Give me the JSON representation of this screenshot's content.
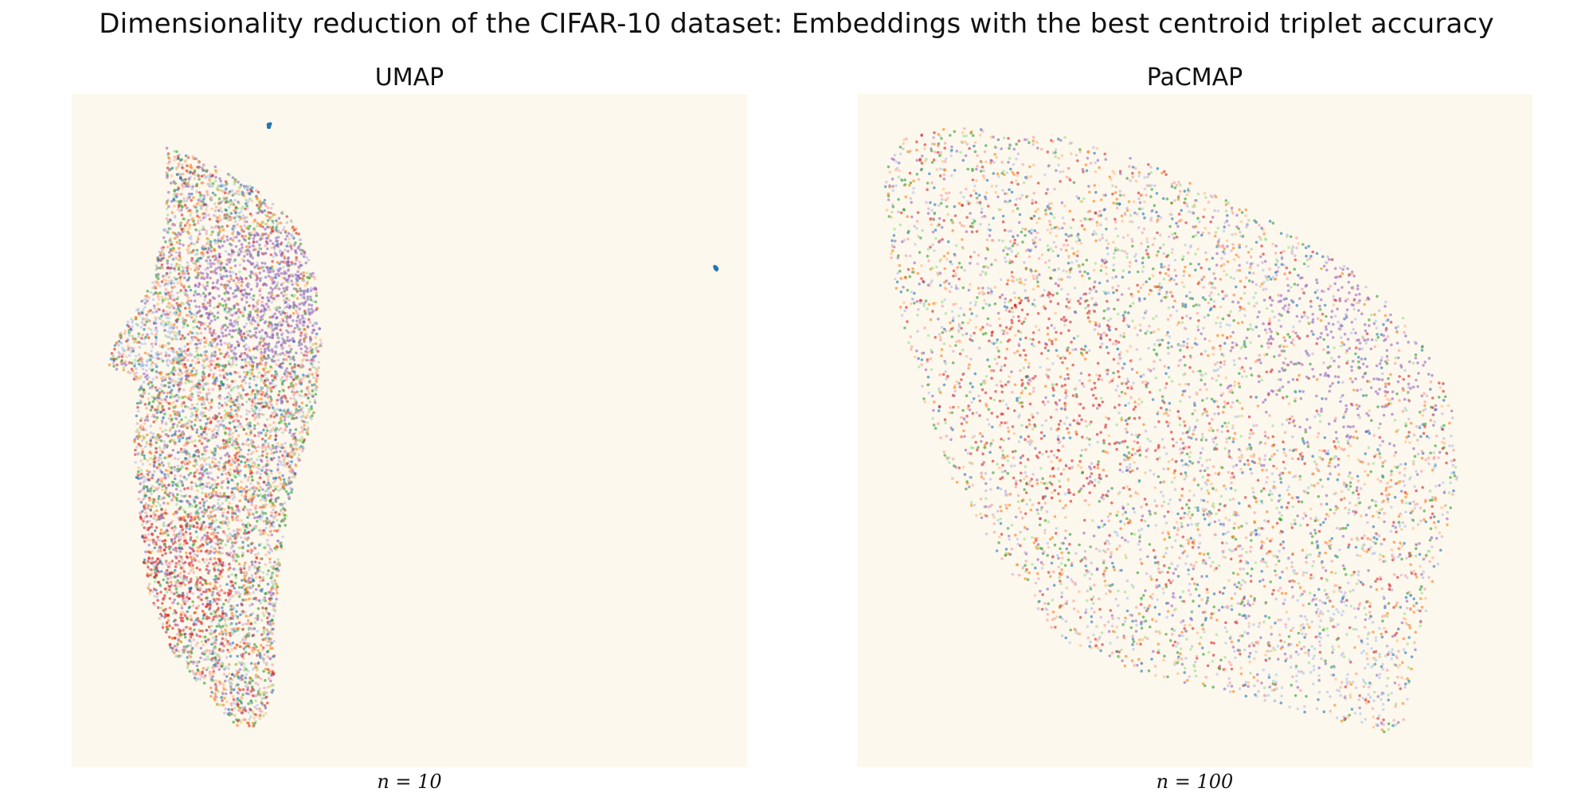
{
  "figure": {
    "title": "Dimensionality reduction of the CIFAR-10 dataset: Embeddings with the best centroid triplet accuracy",
    "background_color": "#fdf8ee"
  },
  "palette": {
    "name": "tab20",
    "colors": [
      "#1f77b4",
      "#aec7e8",
      "#ff7f0e",
      "#ffbb78",
      "#2ca02c",
      "#98df8a",
      "#d62728",
      "#ff9896",
      "#9467bd",
      "#c5b0d5"
    ]
  },
  "chart_data": [
    {
      "type": "scatter",
      "title": "UMAP",
      "caption": "n = 10",
      "axes_visible": false,
      "grid": false,
      "legend": "none",
      "xlim": [
        0,
        100
      ],
      "ylim": [
        0,
        100
      ],
      "hull": [
        [
          14,
          92
        ],
        [
          20,
          90
        ],
        [
          27,
          86
        ],
        [
          33,
          81
        ],
        [
          36,
          73
        ],
        [
          37,
          63
        ],
        [
          36,
          53
        ],
        [
          33,
          43
        ],
        [
          31,
          32
        ],
        [
          30,
          20
        ],
        [
          30,
          12
        ],
        [
          29,
          8
        ],
        [
          27,
          6
        ],
        [
          24,
          6
        ],
        [
          20,
          11
        ],
        [
          15,
          17
        ],
        [
          11,
          26
        ],
        [
          10,
          38
        ],
        [
          9,
          48
        ],
        [
          10,
          57
        ],
        [
          5,
          60
        ],
        [
          8,
          66
        ],
        [
          12,
          72
        ],
        [
          14,
          82
        ]
      ],
      "lobes": [
        {
          "center": [
            28,
            70
          ],
          "radius": 10,
          "color_index": 8,
          "weight": 0.5
        },
        {
          "center": [
            14,
            28
          ],
          "radius": 10,
          "color_index": 6,
          "weight": 0.35
        },
        {
          "center": [
            12,
            64
          ],
          "radius": 5,
          "color_index": 1,
          "weight": 0.35
        }
      ],
      "clusters": [
        {
          "label": "tight blob",
          "center": [
            29.2,
            95.3
          ],
          "color_index": 0,
          "count": 12
        },
        {
          "label": "tight blob",
          "center": [
            95.4,
            74.1
          ],
          "color_index": 0,
          "count": 12
        }
      ],
      "n_points": 6500
    },
    {
      "type": "scatter",
      "title": "PaCMAP",
      "caption": "n = 100",
      "axes_visible": false,
      "grid": false,
      "legend": "none",
      "xlim": [
        0,
        100
      ],
      "ylim": [
        0,
        100
      ],
      "hull": [
        [
          5,
          94
        ],
        [
          15,
          95
        ],
        [
          30,
          94
        ],
        [
          45,
          89
        ],
        [
          60,
          82
        ],
        [
          72,
          75
        ],
        [
          82,
          66
        ],
        [
          88,
          55
        ],
        [
          89,
          42
        ],
        [
          86,
          30
        ],
        [
          83,
          18
        ],
        [
          81,
          7
        ],
        [
          78,
          5
        ],
        [
          67,
          8
        ],
        [
          55,
          11
        ],
        [
          42,
          14
        ],
        [
          30,
          19
        ],
        [
          22,
          30
        ],
        [
          14,
          43
        ],
        [
          8,
          60
        ],
        [
          5,
          75
        ],
        [
          4,
          87
        ]
      ],
      "lobes": [
        {
          "center": [
            72,
            62
          ],
          "radius": 14,
          "color_index": 8,
          "weight": 0.45
        },
        {
          "center": [
            30,
            55
          ],
          "radius": 16,
          "color_index": 6,
          "weight": 0.3
        },
        {
          "center": [
            70,
            14
          ],
          "radius": 10,
          "color_index": 1,
          "weight": 0.35
        }
      ],
      "clusters": [],
      "n_points": 5500
    }
  ]
}
